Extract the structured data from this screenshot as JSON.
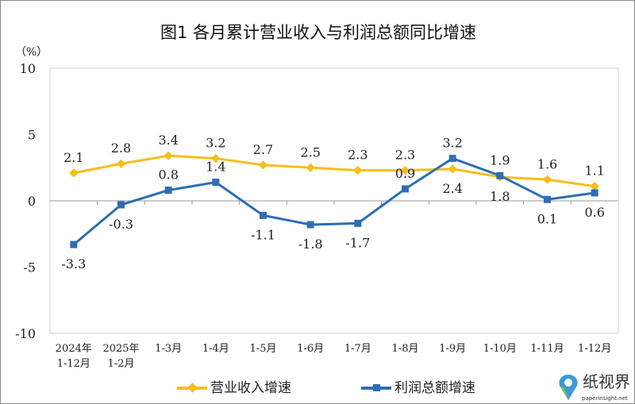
{
  "chart_data": {
    "type": "line",
    "title": "图1  各月累计营业收入与利润总额同比增速",
    "ylabel": "（%）",
    "ylim": [
      -10,
      10
    ],
    "yticks": [
      10,
      5,
      0,
      -5,
      -10
    ],
    "categories": [
      [
        "2024年",
        "1-12月"
      ],
      [
        "2025年",
        "1-2月"
      ],
      [
        "1-3月"
      ],
      [
        "1-4月"
      ],
      [
        "1-5月"
      ],
      [
        "1-6月"
      ],
      [
        "1-7月"
      ],
      [
        "1-8月"
      ],
      [
        "1-9月"
      ],
      [
        "1-10月"
      ],
      [
        "1-11月"
      ],
      [
        "1-12月"
      ]
    ],
    "grid": false,
    "legend_position": "bottom",
    "series": [
      {
        "name": "营业收入增速",
        "color": "#F5BE1B",
        "marker": "diamond",
        "values": [
          2.1,
          2.8,
          3.4,
          3.2,
          2.7,
          2.5,
          2.3,
          2.3,
          2.4,
          1.8,
          1.6,
          1.1
        ],
        "label_pos": [
          "above",
          "above",
          "above",
          "above",
          "above",
          "above",
          "above",
          "above",
          "below",
          "below",
          "above",
          "above"
        ]
      },
      {
        "name": "利润总额增速",
        "color": "#2E6DB4",
        "marker": "square",
        "values": [
          -3.3,
          -0.3,
          0.8,
          1.4,
          -1.1,
          -1.8,
          -1.7,
          0.9,
          3.2,
          1.9,
          0.1,
          0.6
        ],
        "label_pos": [
          "below",
          "below",
          "above",
          "above",
          "below",
          "below",
          "below",
          "above",
          "above",
          "above",
          "below",
          "below"
        ]
      }
    ]
  },
  "watermark": {
    "text": "纸视界",
    "url": "paperinsight.net",
    "icon": "location-pin-logo"
  }
}
